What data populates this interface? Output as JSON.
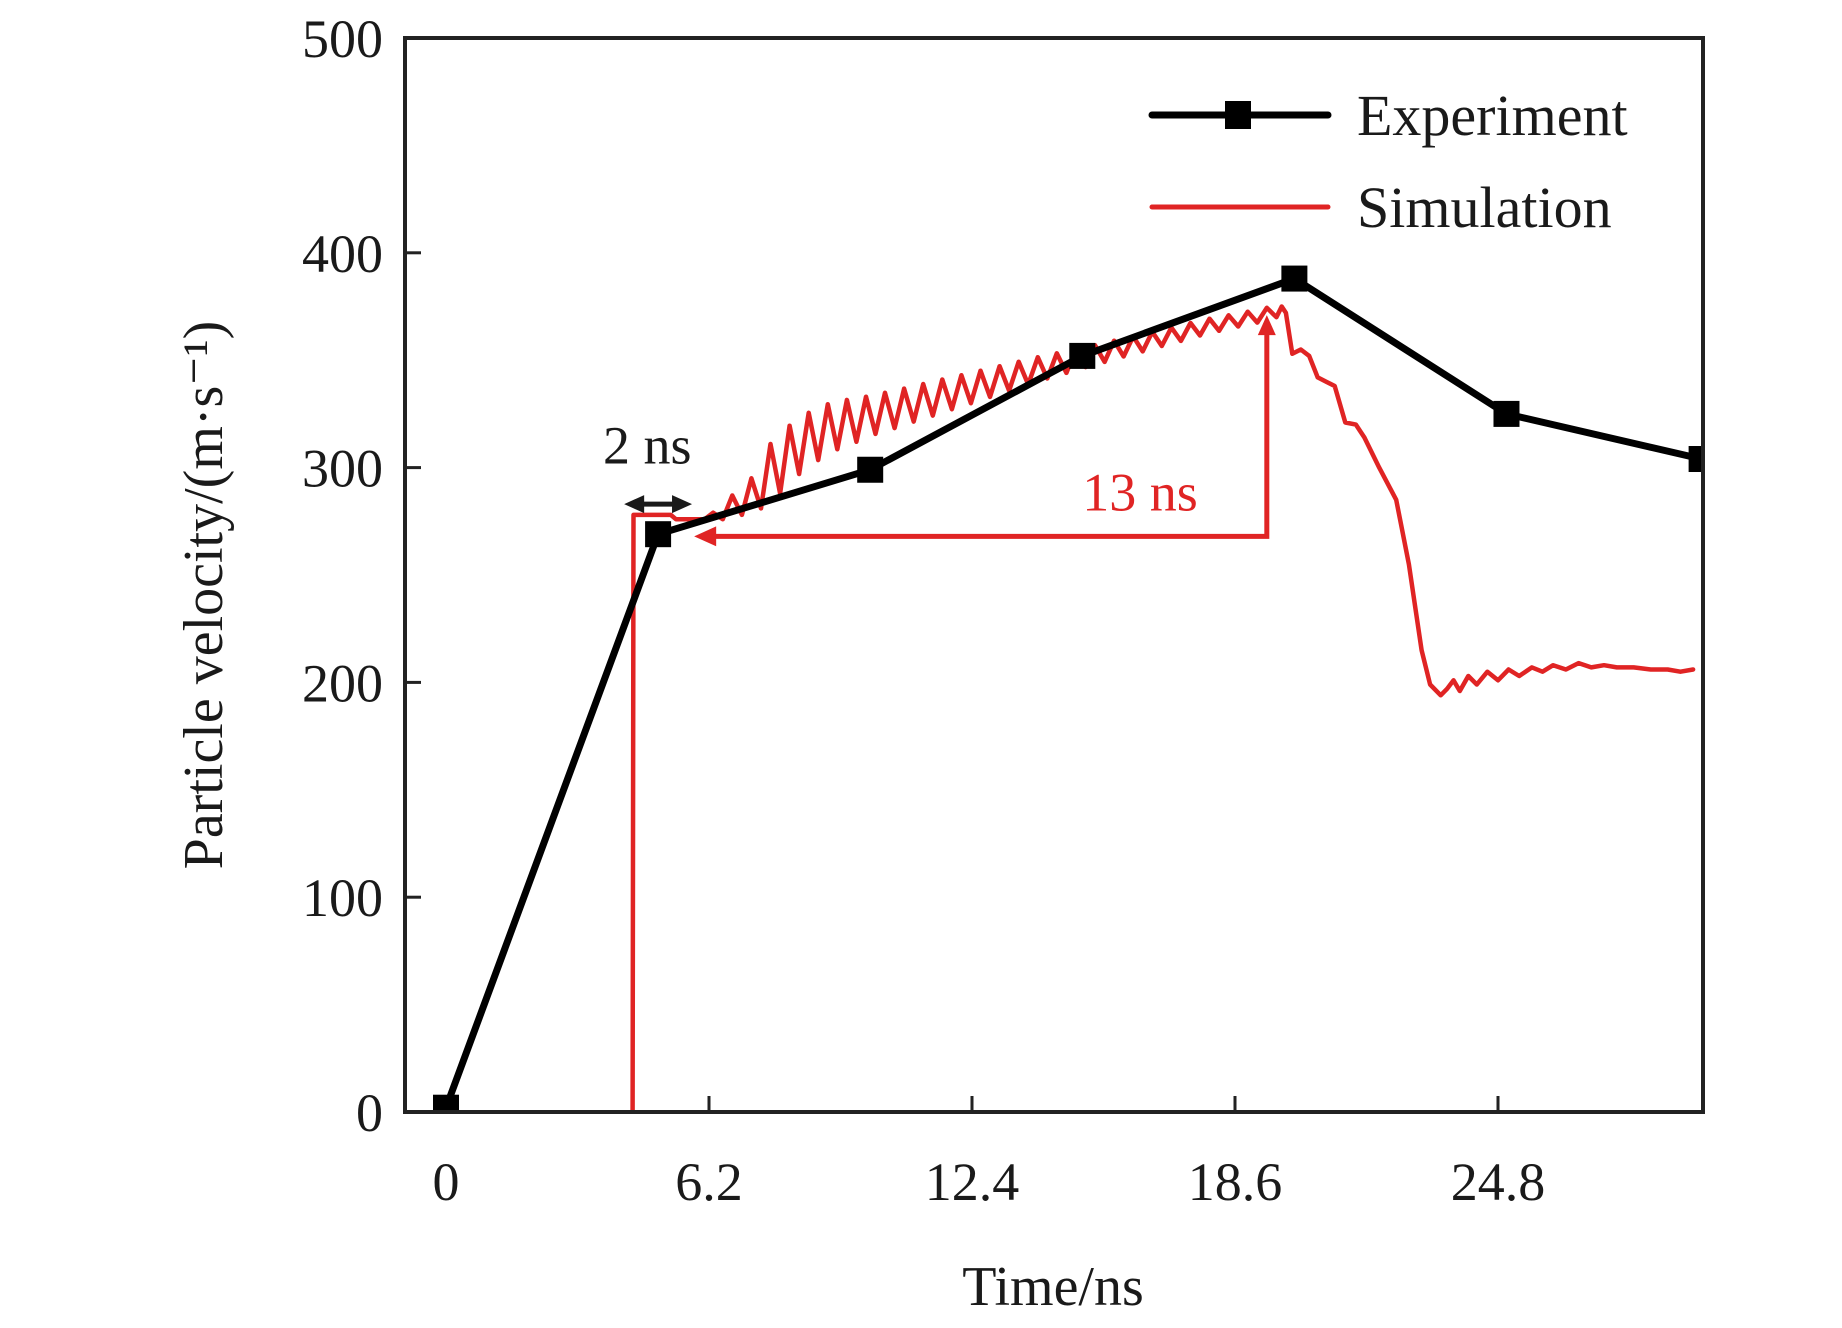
{
  "chart_data": {
    "type": "line",
    "title": "",
    "xlabel": "Time/ns",
    "ylabel": "Particle velocity/(m·s⁻¹)",
    "xlim": [
      -0.9,
      29.6
    ],
    "ylim": [
      0,
      500
    ],
    "x_ticks": [
      0,
      6.2,
      12.4,
      18.6,
      24.8
    ],
    "x_tick_labels": [
      "0",
      "6.2",
      "12.4",
      "18.6",
      "24.8"
    ],
    "y_ticks": [
      0,
      100,
      200,
      300,
      400,
      500
    ],
    "y_tick_labels": [
      "0",
      "100",
      "200",
      "300",
      "400",
      "500"
    ],
    "grid": false,
    "legend": {
      "position": "top-right"
    },
    "series": [
      {
        "name": "Experiment",
        "color": "#000000",
        "marker": "square",
        "x": [
          0,
          5,
          10,
          15,
          20,
          25,
          29.6
        ],
        "y": [
          2,
          269,
          299,
          352,
          388,
          325,
          304
        ]
      },
      {
        "name": "Simulation",
        "color": "#e02424",
        "marker": "none",
        "x": [
          4.4,
          4.42,
          5.3,
          5.42,
          6.1,
          6.3,
          6.525,
          6.75,
          6.975,
          7.2,
          7.425,
          7.65,
          7.875,
          8.1,
          8.325,
          8.55,
          8.775,
          9.0,
          9.225,
          9.45,
          9.675,
          9.9,
          10.125,
          10.35,
          10.575,
          10.8,
          11.025,
          11.25,
          11.475,
          11.7,
          11.925,
          12.15,
          12.375,
          12.6,
          12.825,
          13.05,
          13.275,
          13.5,
          13.725,
          13.95,
          14.175,
          14.4,
          14.625,
          14.85,
          15.075,
          15.3,
          15.525,
          15.75,
          15.975,
          16.2,
          16.425,
          16.65,
          16.875,
          17.1,
          17.325,
          17.55,
          17.775,
          18.0,
          18.225,
          18.45,
          18.675,
          18.9,
          19.125,
          19.35,
          19.575,
          19.7,
          19.8,
          19.95,
          20.15,
          20.35,
          20.55,
          20.75,
          20.95,
          21.2,
          21.45,
          21.65,
          22.0,
          22.4,
          22.7,
          23.0,
          23.2,
          23.45,
          23.6,
          23.75,
          23.9,
          24.1,
          24.3,
          24.55,
          24.8,
          25.05,
          25.3,
          25.6,
          25.85,
          26.1,
          26.4,
          26.7,
          27.0,
          27.3,
          27.6,
          28.0,
          28.4,
          28.8,
          29.1,
          29.4
        ],
        "y": [
          0,
          278,
          278,
          276,
          276,
          279,
          276,
          287,
          278,
          295,
          281,
          311,
          288,
          319.5,
          297,
          325.5,
          303.5,
          329.5,
          308.5,
          331.5,
          312,
          333,
          315.7,
          334.8,
          318.4,
          336.8,
          321.4,
          338.9,
          324.2,
          341,
          327.2,
          343,
          330,
          345.1,
          332.9,
          347.2,
          335.8,
          349.3,
          338.7,
          351.4,
          341.5,
          353.2,
          344.1,
          355.1,
          346.8,
          357,
          349.2,
          359.1,
          351.7,
          361.1,
          354.1,
          363.2,
          356.6,
          365.2,
          359,
          367.3,
          361.5,
          369.3,
          363.7,
          370.9,
          365.7,
          372.6,
          367.5,
          374.4,
          370,
          375,
          372,
          353,
          355,
          352,
          342,
          340,
          338,
          321,
          320,
          314,
          300,
          285,
          255,
          215,
          199,
          194,
          197,
          201,
          196,
          203,
          199,
          205,
          201,
          206,
          203,
          207,
          205,
          208,
          206,
          209,
          207,
          208,
          207,
          207,
          206,
          206,
          205,
          206
        ]
      }
    ],
    "annotations": [
      {
        "name": "delay-2ns",
        "text": "2 ns",
        "color": "#1a1a1a",
        "type": "double-arrow",
        "x_from": 4.2,
        "x_to": 5.8,
        "y": 283,
        "text_x": 3.7,
        "text_y": 302
      },
      {
        "name": "delay-13ns",
        "text": "13 ns",
        "color": "#e02424",
        "type": "elbow-arrows",
        "x_from": 19.35,
        "x_to": 5.85,
        "y": 268,
        "y_to": 371,
        "text_x": 15.0,
        "text_y": 280
      }
    ]
  }
}
